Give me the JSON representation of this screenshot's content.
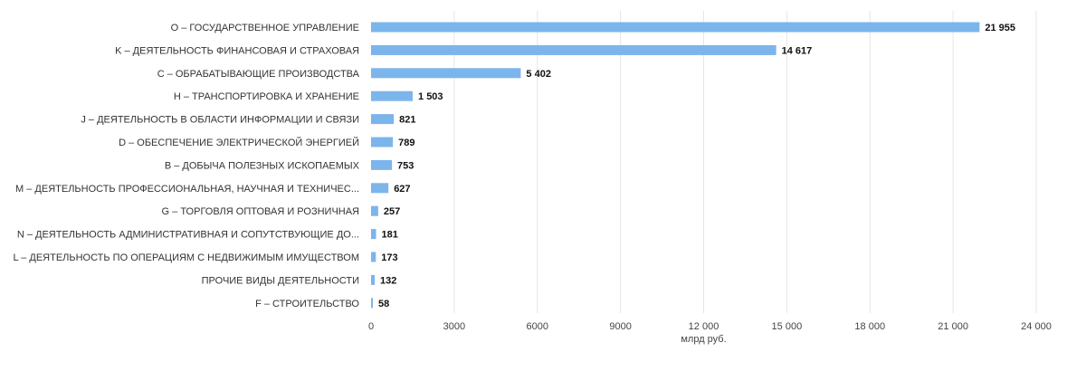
{
  "chart_data": {
    "type": "bar",
    "orientation": "horizontal",
    "categories": [
      "O – ГОСУДАРСТВЕННОЕ УПРАВЛЕНИЕ",
      "K – ДЕЯТЕЛЬНОСТЬ ФИНАНСОВАЯ И СТРАХОВАЯ",
      "C – ОБРАБАТЫВАЮЩИЕ ПРОИЗВОДСТВА",
      "H – ТРАНСПОРТИРОВКА И ХРАНЕНИЕ",
      "J – ДЕЯТЕЛЬНОСТЬ В ОБЛАСТИ ИНФОРМАЦИИ И СВЯЗИ",
      "D – ОБЕСПЕЧЕНИЕ ЭЛЕКТРИЧЕСКОЙ ЭНЕРГИЕЙ",
      "B – ДОБЫЧА ПОЛЕЗНЫХ ИСКОПАЕМЫХ",
      "M – ДЕЯТЕЛЬНОСТЬ ПРОФЕССИОНАЛЬНАЯ, НАУЧНАЯ И ТЕХНИЧЕС...",
      "G – ТОРГОВЛЯ ОПТОВАЯ И РОЗНИЧНАЯ",
      "N – ДЕЯТЕЛЬНОСТЬ АДМИНИСТРАТИВНАЯ И СОПУТСТВУЮЩИЕ ДО...",
      "L – ДЕЯТЕЛЬНОСТЬ ПО ОПЕРАЦИЯМ С НЕДВИЖИМЫМ ИМУЩЕСТВОМ",
      "ПРОЧИЕ ВИДЫ ДЕЯТЕЛЬНОСТИ",
      "F – СТРОИТЕЛЬСТВО"
    ],
    "values": [
      21955,
      14617,
      5402,
      1503,
      821,
      789,
      753,
      627,
      257,
      181,
      173,
      132,
      58
    ],
    "value_labels": [
      "21 955",
      "14 617",
      "5 402",
      "1 503",
      "821",
      "789",
      "753",
      "627",
      "257",
      "181",
      "173",
      "132",
      "58"
    ],
    "xlabel": "млрд руб.",
    "ylabel": "",
    "xlim": [
      0,
      24000
    ],
    "x_ticks": [
      0,
      3000,
      6000,
      9000,
      12000,
      15000,
      18000,
      21000,
      24000
    ],
    "x_tick_labels": [
      "0",
      "3000",
      "6000",
      "9000",
      "12 000",
      "15 000",
      "18 000",
      "21 000",
      "24 000"
    ],
    "grid": "vertical",
    "legend": "none",
    "bar_color": "#7cb5ec"
  }
}
